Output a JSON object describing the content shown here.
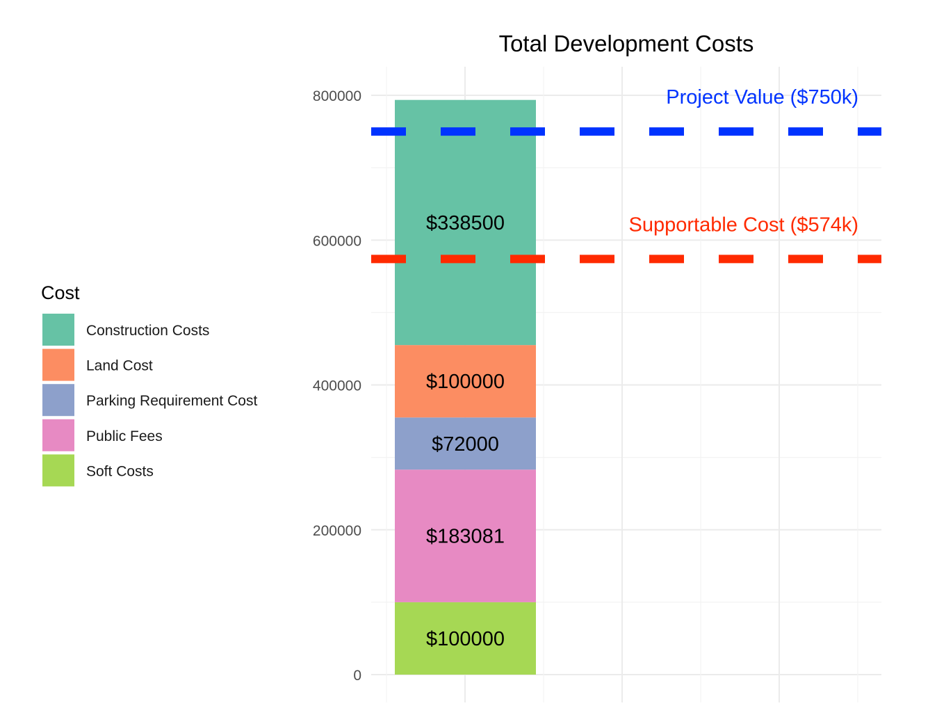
{
  "chart_data": {
    "type": "bar",
    "stacked": true,
    "title": "Total Development Costs",
    "xlabel": "",
    "ylabel": "",
    "ylim": [
      0,
      800000
    ],
    "yticks": [
      0,
      200000,
      400000,
      600000,
      800000
    ],
    "ytick_labels": [
      "0",
      "200000",
      "400000",
      "600000",
      "800000"
    ],
    "grid": true,
    "legend": {
      "title": "Cost",
      "position": "left",
      "items": [
        {
          "name": "Construction Costs",
          "color": "#66c2a5"
        },
        {
          "name": "Land Cost",
          "color": "#fc8d62"
        },
        {
          "name": "Parking Requirement Cost",
          "color": "#8da0cb"
        },
        {
          "name": "Public Fees",
          "color": "#e78ac3"
        },
        {
          "name": "Soft Costs",
          "color": "#a6d854"
        }
      ]
    },
    "stack_bottom_to_top": [
      {
        "name": "Soft Costs",
        "value": 100000,
        "label": "$100000",
        "color": "#a6d854"
      },
      {
        "name": "Public Fees",
        "value": 183081,
        "label": "$183081",
        "color": "#e78ac3"
      },
      {
        "name": "Parking Requirement Cost",
        "value": 72000,
        "label": "$72000",
        "color": "#8da0cb"
      },
      {
        "name": "Land Cost",
        "value": 100000,
        "label": "$100000",
        "color": "#fc8d62"
      },
      {
        "name": "Construction Costs",
        "value": 338500,
        "label": "$338500",
        "color": "#66c2a5"
      }
    ],
    "reference_lines": [
      {
        "value": 750000,
        "label": "Project Value ($750k)",
        "color": "#0033ff",
        "style": "dashed"
      },
      {
        "value": 574000,
        "label": "Supportable Cost ($574k)",
        "color": "#ff2a00",
        "style": "dashed"
      }
    ]
  }
}
